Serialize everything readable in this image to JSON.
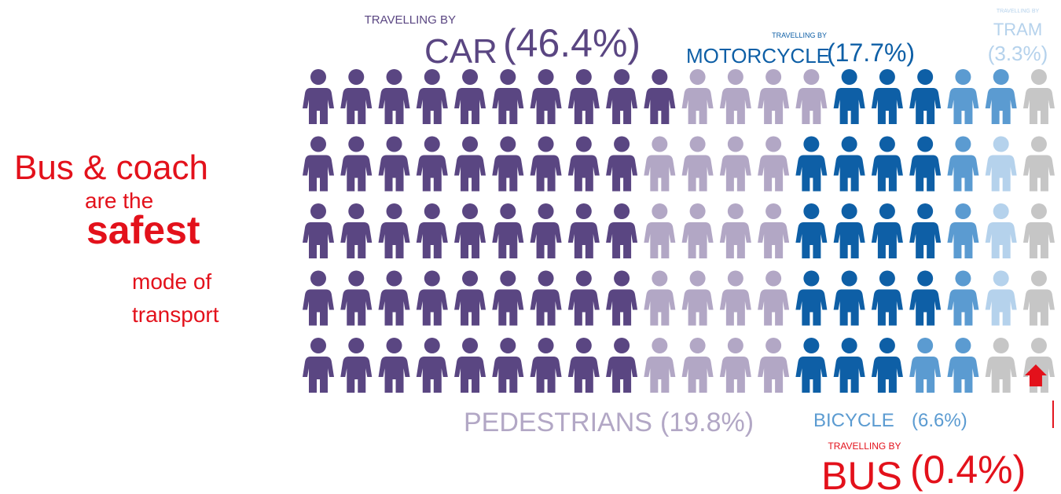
{
  "chart_data": {
    "type": "waffle",
    "title": [
      "Bus & coach",
      "are the",
      "safest",
      "mode of",
      "transport"
    ],
    "title_color": "#e3111b",
    "rest_color": "#c6c6c6",
    "series": [
      {
        "prefix": "TRAVELLING BY",
        "name": "CAR",
        "value": 46.4,
        "value_label": "(46.4%)",
        "color": "#5a4682"
      },
      {
        "name": "PEDESTRIANS",
        "value": 19.8,
        "value_label": "(19.8%)",
        "color": "#b2a7c5"
      },
      {
        "prefix": "TRAVELLING BY",
        "name": "MOTORCYCLE",
        "value": 17.7,
        "value_label": "(17.7%)",
        "color": "#0e5fa6"
      },
      {
        "name": "BICYCLE",
        "value": 6.6,
        "value_label": "(6.6%)",
        "color": "#5b9bd1"
      },
      {
        "prefix": "TRAVELLING BY",
        "name": "TRAM",
        "value": 3.3,
        "value_label": "(3.3%)",
        "color": "#b5d2ec"
      },
      {
        "prefix": "TRAVELLING BY",
        "name": "BUS",
        "value": 0.4,
        "value_label": "(0.4%)",
        "color": "#e3111b"
      }
    ]
  }
}
